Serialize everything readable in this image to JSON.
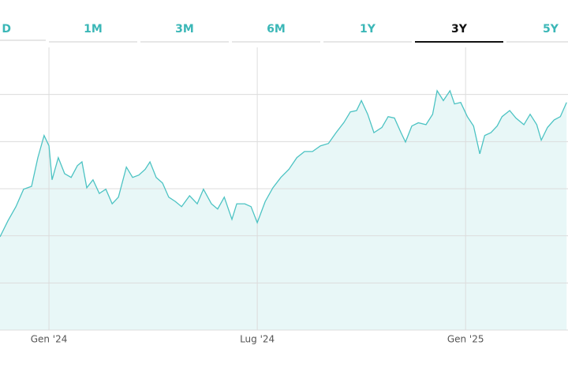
{
  "tabs": [
    {
      "label": "D",
      "active": false
    },
    {
      "label": "1M",
      "active": false
    },
    {
      "label": "3M",
      "active": false
    },
    {
      "label": "6M",
      "active": false
    },
    {
      "label": "1Y",
      "active": false
    },
    {
      "label": "3Y",
      "active": true
    },
    {
      "label": "5Y",
      "active": false
    }
  ],
  "chart_data": {
    "type": "area",
    "color": "#4cc3c3",
    "fill": "#e8f7f7",
    "x": [
      -1.41,
      -1.18,
      -0.95,
      -0.73,
      -0.5,
      -0.32,
      -0.14,
      0,
      0.09,
      0.27,
      0.45,
      0.64,
      0.82,
      0.95,
      1.09,
      1.27,
      1.45,
      1.64,
      1.82,
      2,
      2.23,
      2.41,
      2.59,
      2.77,
      2.91,
      3.09,
      3.27,
      3.45,
      3.64,
      3.82,
      4.05,
      4.27,
      4.45,
      4.68,
      4.86,
      5.05,
      5.27,
      5.41,
      5.64,
      5.82,
      6,
      6.23,
      6.45,
      6.68,
      6.91,
      7.14,
      7.36,
      7.59,
      7.82,
      8.05,
      8.27,
      8.5,
      8.68,
      8.86,
      9,
      9.18,
      9.36,
      9.59,
      9.77,
      9.95,
      10.14,
      10.27,
      10.45,
      10.64,
      10.86,
      11.05,
      11.18,
      11.36,
      11.55,
      11.68,
      11.86,
      12.05,
      12.23,
      12.41,
      12.55,
      12.73,
      12.91,
      13.05,
      13.27,
      13.45,
      13.68,
      13.86,
      14.05,
      14.18,
      14.36,
      14.55,
      14.73,
      14.91
    ],
    "values": [
      1.98,
      2.32,
      2.62,
      2.99,
      3.05,
      3.66,
      4.13,
      3.91,
      3.19,
      3.66,
      3.32,
      3.24,
      3.49,
      3.57,
      3.02,
      3.19,
      2.9,
      2.99,
      2.68,
      2.82,
      3.46,
      3.24,
      3.29,
      3.41,
      3.57,
      3.24,
      3.12,
      2.82,
      2.73,
      2.62,
      2.85,
      2.68,
      2.99,
      2.68,
      2.57,
      2.82,
      2.35,
      2.68,
      2.68,
      2.62,
      2.28,
      2.73,
      3.02,
      3.24,
      3.41,
      3.66,
      3.79,
      3.79,
      3.91,
      3.96,
      4.19,
      4.41,
      4.63,
      4.66,
      4.87,
      4.58,
      4.19,
      4.3,
      4.53,
      4.5,
      4.19,
      3.99,
      4.33,
      4.4,
      4.36,
      4.58,
      5.08,
      4.87,
      5.08,
      4.8,
      4.83,
      4.53,
      4.33,
      3.74,
      4.13,
      4.19,
      4.33,
      4.53,
      4.66,
      4.5,
      4.36,
      4.58,
      4.36,
      4.03,
      4.3,
      4.46,
      4.53,
      4.83
    ],
    "xlim": [
      -1.41,
      14.95
    ],
    "xticks": [
      {
        "value": 0,
        "label": "Gen '24"
      },
      {
        "value": 6,
        "label": "Lug '24"
      },
      {
        "value": 12,
        "label": "Gen '25"
      }
    ],
    "ylim": [
      0,
      6
    ],
    "ygrid": [
      0,
      1,
      2,
      3,
      4,
      5
    ],
    "grid": true
  }
}
